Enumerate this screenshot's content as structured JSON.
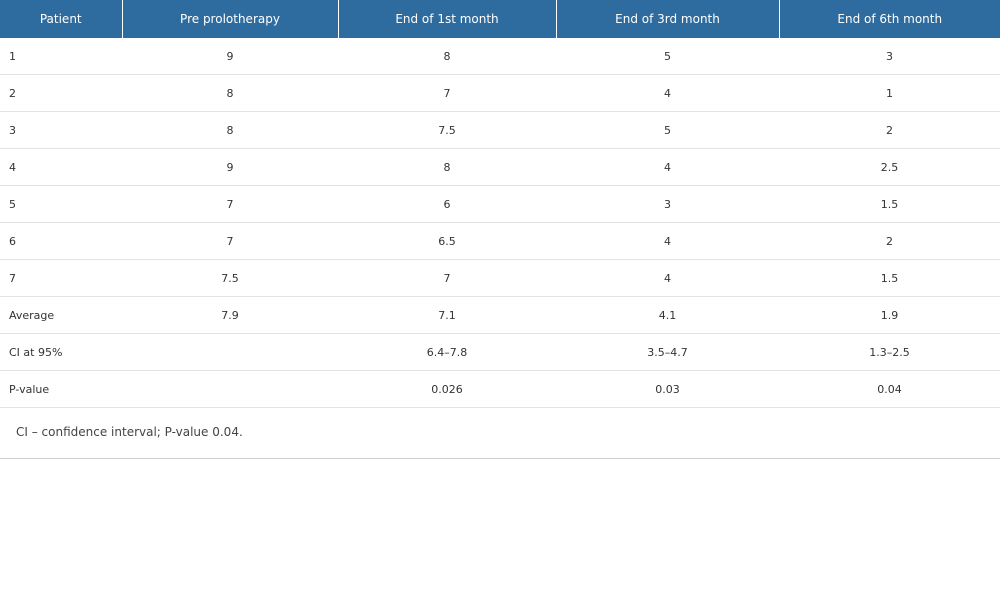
{
  "table": {
    "headers": [
      "Patient",
      "Pre prolotherapy",
      "End of 1st month",
      "End of 3rd month",
      "End of 6th month"
    ],
    "rows": [
      [
        "1",
        "9",
        "8",
        "5",
        "3"
      ],
      [
        "2",
        "8",
        "7",
        "4",
        "1"
      ],
      [
        "3",
        "8",
        "7.5",
        "5",
        "2"
      ],
      [
        "4",
        "9",
        "8",
        "4",
        "2.5"
      ],
      [
        "5",
        "7",
        "6",
        "3",
        "1.5"
      ],
      [
        "6",
        "7",
        "6.5",
        "4",
        "2"
      ],
      [
        "7",
        "7.5",
        "7",
        "4",
        "1.5"
      ],
      [
        "Average",
        "7.9",
        "7.1",
        "4.1",
        "1.9"
      ],
      [
        "CI at 95%",
        "",
        "6.4–7.8",
        "3.5–4.7",
        "1.3–2.5"
      ],
      [
        "P-value",
        "",
        "0.026",
        "0.03",
        "0.04"
      ]
    ],
    "footnote": "CI – confidence interval; P-value 0.04."
  }
}
